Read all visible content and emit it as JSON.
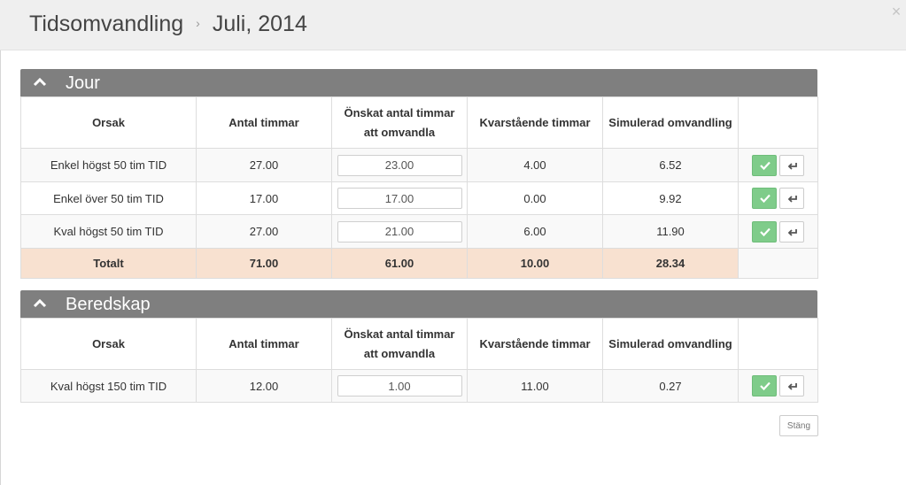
{
  "header": {
    "title": "Tidsomvandling",
    "separator": "›",
    "period": "Juli, 2014",
    "close_symbol": "×"
  },
  "columns": [
    "Orsak",
    "Antal timmar",
    "Önskat antal timmar",
    "att omvandla",
    "Kvarstående timmar",
    "Simulerad omvandling"
  ],
  "jour": {
    "title": "Jour",
    "rows": [
      {
        "reason": "Enkel högst 50 tim TID",
        "hours": "27.00",
        "wanted": "23.00",
        "remaining": "4.00",
        "simulated": "6.52"
      },
      {
        "reason": "Enkel över 50 tim TID",
        "hours": "17.00",
        "wanted": "17.00",
        "remaining": "0.00",
        "simulated": "9.92"
      },
      {
        "reason": "Kval högst 50 tim TID",
        "hours": "27.00",
        "wanted": "21.00",
        "remaining": "6.00",
        "simulated": "11.90"
      }
    ],
    "total": {
      "label": "Totalt",
      "hours": "71.00",
      "wanted": "61.00",
      "remaining": "10.00",
      "simulated": "28.34"
    }
  },
  "beredskap": {
    "title": "Beredskap",
    "rows": [
      {
        "reason": "Kval högst 150 tim TID",
        "hours": "12.00",
        "wanted": "1.00",
        "remaining": "11.00",
        "simulated": "0.27"
      }
    ]
  },
  "footer": {
    "close_label": "Stäng"
  },
  "colors": {
    "panel_header": "#7f7f7f",
    "total_row": "#f8e1d0",
    "confirm_button": "#7fcc8a"
  }
}
